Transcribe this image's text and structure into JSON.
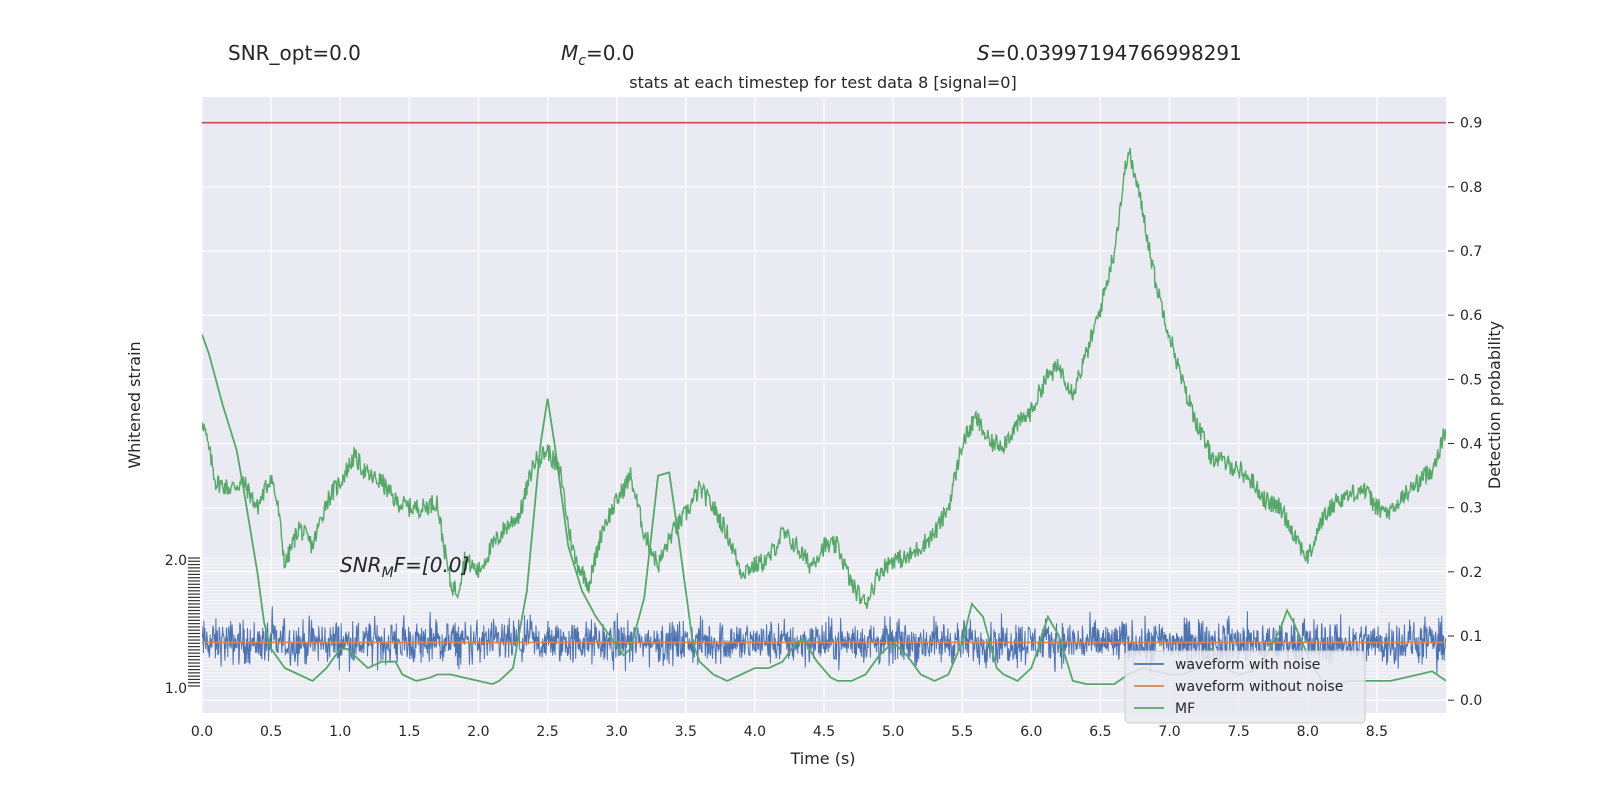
{
  "header": {
    "snr_opt": "SNR_opt=0.0",
    "mc_var": "M",
    "mc_sub": "c",
    "mc_val": "=0.0",
    "s_var": "S",
    "s_val": "=0.03997194766998291"
  },
  "chart_data": {
    "type": "line",
    "title": "stats at each timestep for test data 8 [signal=0]",
    "xlabel": "Time (s)",
    "ylabel_left": "Whitened strain",
    "ylabel_right": "Detection probability",
    "xlim": [
      0.0,
      9.0
    ],
    "ylim_right": [
      -0.02,
      0.94
    ],
    "x_ticks": [
      "0.0",
      "0.5",
      "1.0",
      "1.5",
      "2.0",
      "2.5",
      "3.0",
      "3.5",
      "4.0",
      "4.5",
      "5.0",
      "5.5",
      "6.0",
      "6.5",
      "7.0",
      "7.5",
      "8.0",
      "8.5"
    ],
    "y_right_ticks": [
      "0.0",
      "0.1",
      "0.2",
      "0.3",
      "0.4",
      "0.5",
      "0.6",
      "0.7",
      "0.8",
      "0.9"
    ],
    "y_left_tick_top": "2.0",
    "y_left_tick_bottom": "1.0",
    "threshold": 0.9,
    "annotation": {
      "var": "SNR",
      "sub": "M",
      "rest": "F=[0.0]"
    },
    "colors": {
      "noise": "#4c72b0",
      "clean": "#dd8452",
      "mf": "#55a868",
      "threshold": "#c44e52",
      "background": "#eaeaf2",
      "grid": "#ffffff"
    },
    "legend": {
      "placement": "lower-right",
      "entries": [
        "waveform with noise",
        "waveform without noise",
        "MF"
      ]
    },
    "series": [
      {
        "name": "MF",
        "x": [
          0.0,
          0.05,
          0.15,
          0.25,
          0.3,
          0.4,
          0.45,
          0.5,
          0.6,
          0.7,
          0.8,
          0.9,
          1.0,
          1.05,
          1.15,
          1.2,
          1.3,
          1.4,
          1.45,
          1.55,
          1.65,
          1.7,
          1.8,
          1.9,
          2.0,
          2.1,
          2.15,
          2.25,
          2.35,
          2.45,
          2.5,
          2.55,
          2.65,
          2.75,
          2.85,
          2.95,
          3.05,
          3.1,
          3.2,
          3.3,
          3.38,
          3.45,
          3.55,
          3.6,
          3.7,
          3.8,
          3.9,
          4.0,
          4.1,
          4.2,
          4.3,
          4.35,
          4.45,
          4.55,
          4.6,
          4.7,
          4.8,
          4.9,
          5.0,
          5.1,
          5.2,
          5.3,
          5.4,
          5.5,
          5.57,
          5.65,
          5.75,
          5.8,
          5.9,
          6.0,
          6.05,
          6.12,
          6.2,
          6.3,
          6.4,
          6.5,
          6.6,
          6.7,
          6.8,
          6.9,
          7.0,
          7.1,
          7.2,
          7.3,
          7.4,
          7.5,
          7.6,
          7.7,
          7.8,
          7.85,
          7.9,
          8.0,
          8.1,
          8.2,
          8.3,
          8.4,
          8.5,
          8.6,
          8.7,
          8.8,
          8.9,
          9.0
        ],
        "values": [
          0.57,
          0.54,
          0.46,
          0.39,
          0.33,
          0.2,
          0.12,
          0.08,
          0.05,
          0.04,
          0.03,
          0.05,
          0.08,
          0.08,
          0.06,
          0.05,
          0.06,
          0.06,
          0.04,
          0.03,
          0.035,
          0.04,
          0.04,
          0.035,
          0.03,
          0.025,
          0.03,
          0.05,
          0.17,
          0.4,
          0.47,
          0.4,
          0.24,
          0.17,
          0.13,
          0.1,
          0.07,
          0.08,
          0.16,
          0.35,
          0.355,
          0.25,
          0.09,
          0.06,
          0.04,
          0.03,
          0.04,
          0.05,
          0.05,
          0.06,
          0.09,
          0.095,
          0.06,
          0.035,
          0.03,
          0.03,
          0.04,
          0.07,
          0.09,
          0.07,
          0.04,
          0.03,
          0.04,
          0.09,
          0.15,
          0.13,
          0.05,
          0.04,
          0.03,
          0.05,
          0.08,
          0.13,
          0.1,
          0.03,
          0.025,
          0.025,
          0.025,
          0.04,
          0.05,
          0.045,
          0.04,
          0.04,
          0.05,
          0.08,
          0.05,
          0.04,
          0.045,
          0.07,
          0.11,
          0.14,
          0.12,
          0.07,
          0.03,
          0.025,
          0.03,
          0.03,
          0.03,
          0.03,
          0.035,
          0.04,
          0.045,
          0.03
        ]
      },
      {
        "name": "detection-probability",
        "x": [
          0.0,
          0.05,
          0.1,
          0.2,
          0.3,
          0.4,
          0.5,
          0.55,
          0.6,
          0.65,
          0.7,
          0.8,
          0.9,
          1.0,
          1.1,
          1.2,
          1.3,
          1.4,
          1.5,
          1.6,
          1.7,
          1.75,
          1.8,
          1.85,
          1.9,
          2.0,
          2.1,
          2.2,
          2.3,
          2.4,
          2.5,
          2.6,
          2.65,
          2.7,
          2.8,
          2.9,
          3.0,
          3.1,
          3.2,
          3.3,
          3.4,
          3.5,
          3.6,
          3.7,
          3.8,
          3.9,
          4.0,
          4.1,
          4.2,
          4.3,
          4.4,
          4.5,
          4.6,
          4.7,
          4.8,
          4.9,
          5.0,
          5.1,
          5.2,
          5.3,
          5.4,
          5.5,
          5.6,
          5.7,
          5.8,
          5.9,
          6.0,
          6.1,
          6.2,
          6.3,
          6.4,
          6.5,
          6.6,
          6.65,
          6.7,
          6.8,
          6.9,
          7.0,
          7.1,
          7.2,
          7.3,
          7.4,
          7.5,
          7.6,
          7.7,
          7.8,
          7.9,
          8.0,
          8.1,
          8.2,
          8.3,
          8.4,
          8.5,
          8.6,
          8.7,
          8.8,
          8.9,
          9.0
        ],
        "values": [
          0.44,
          0.39,
          0.34,
          0.33,
          0.34,
          0.3,
          0.35,
          0.3,
          0.21,
          0.24,
          0.27,
          0.24,
          0.31,
          0.34,
          0.38,
          0.35,
          0.34,
          0.31,
          0.3,
          0.3,
          0.31,
          0.24,
          0.18,
          0.17,
          0.22,
          0.2,
          0.24,
          0.27,
          0.29,
          0.37,
          0.39,
          0.35,
          0.27,
          0.22,
          0.18,
          0.27,
          0.31,
          0.35,
          0.26,
          0.21,
          0.26,
          0.29,
          0.33,
          0.3,
          0.26,
          0.2,
          0.21,
          0.22,
          0.26,
          0.24,
          0.21,
          0.24,
          0.24,
          0.18,
          0.15,
          0.2,
          0.22,
          0.22,
          0.24,
          0.26,
          0.3,
          0.4,
          0.44,
          0.4,
          0.4,
          0.43,
          0.45,
          0.5,
          0.52,
          0.48,
          0.54,
          0.61,
          0.7,
          0.78,
          0.86,
          0.77,
          0.65,
          0.57,
          0.49,
          0.43,
          0.38,
          0.37,
          0.36,
          0.34,
          0.31,
          0.3,
          0.26,
          0.22,
          0.28,
          0.31,
          0.32,
          0.33,
          0.3,
          0.29,
          0.32,
          0.34,
          0.36,
          0.42
        ]
      },
      {
        "name": "waveform with noise",
        "center": 0.09,
        "half_band": 0.024,
        "spike_range": [
          0.04,
          0.15
        ]
      },
      {
        "name": "waveform without noise",
        "value": 0.09
      }
    ]
  }
}
